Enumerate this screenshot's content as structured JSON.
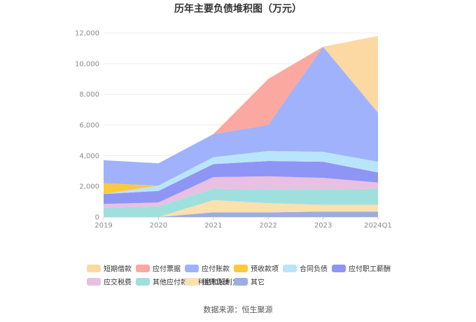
{
  "chart_data": {
    "type": "area",
    "stacked": true,
    "title": "历年主要负债堆积图（万元）",
    "source": "数据来源：恒生聚源",
    "categories": [
      "2019",
      "2020",
      "2021",
      "2022",
      "2023",
      "2024Q1"
    ],
    "ylim": [
      0,
      12000
    ],
    "yticks": [
      0,
      2000,
      4000,
      6000,
      8000,
      10000,
      12000
    ],
    "ytick_labels": [
      "0",
      "2,000",
      "4,000",
      "6,000",
      "8,000",
      "10,000",
      "12,000"
    ],
    "grid": true,
    "legend_position": "bottom",
    "series": [
      {
        "name": "短期借款",
        "color": "#fcd9a3",
        "values": [
          0,
          0,
          0,
          0,
          0,
          5000
        ]
      },
      {
        "name": "应付票据",
        "color": "#fba8a0",
        "values": [
          0,
          0,
          0,
          3000,
          0,
          0
        ]
      },
      {
        "name": "应付账款",
        "color": "#9fb2fb",
        "values": [
          1500,
          1450,
          1500,
          1700,
          6850,
          3200
        ]
      },
      {
        "name": "预收款项",
        "color": "#fdc93d",
        "values": [
          700,
          0,
          0,
          0,
          0,
          0
        ]
      },
      {
        "name": "合同负债",
        "color": "#b9e5fc",
        "values": [
          0,
          350,
          450,
          650,
          650,
          700
        ]
      },
      {
        "name": "应付职工薪酬",
        "color": "#8f95f4",
        "values": [
          650,
          750,
          850,
          1000,
          1050,
          650
        ]
      },
      {
        "name": "应交税费",
        "color": "#e8c0e2",
        "values": [
          250,
          250,
          750,
          850,
          750,
          400
        ]
      },
      {
        "name": "其他应付款(含利息和股利)",
        "color": "#9fe0de",
        "values": [
          600,
          700,
          750,
          900,
          1000,
          1050
        ]
      },
      {
        "name": "租赁负债",
        "color": "#fce0ae",
        "values": [
          0,
          0,
          800,
          600,
          450,
          450
        ]
      },
      {
        "name": "其它",
        "color": "#9aaee0",
        "values": [
          0,
          0,
          300,
          300,
          350,
          350
        ]
      }
    ]
  }
}
